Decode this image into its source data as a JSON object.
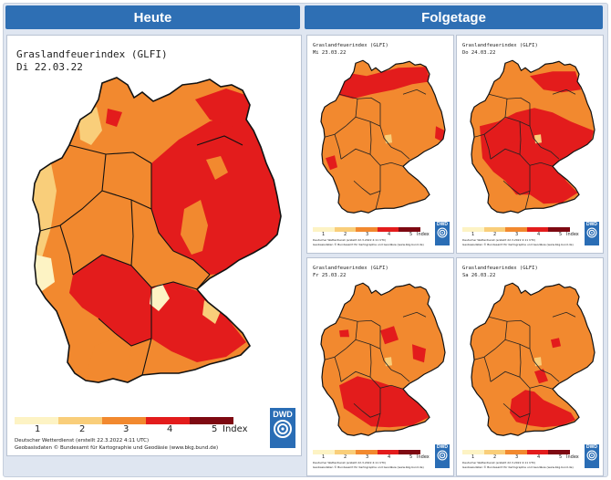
{
  "headers": {
    "today": "Heute",
    "next_days": "Folgetage"
  },
  "main_map": {
    "title": "Graslandfeuerindex (GLFI)",
    "date": "Di 22.03.22",
    "legend": {
      "numbers": [
        "1",
        "2",
        "3",
        "4",
        "5"
      ],
      "unit": "Index"
    },
    "credit_line1": "Deutscher Wetterdienst (erstellt 22.3.2022 4:11 UTC)",
    "credit_line2": "Geobasisdaten © Bundesamt für Kartographie und Geodäsie (www.bkg.bund.de)",
    "logo": "DWD"
  },
  "small_maps": [
    {
      "title": "Graslandfeuerindex (GLFI)",
      "date": "Mi 23.03.22",
      "credit_line1": "Deutscher Wetterdienst (erstellt 22.3.2022 4:11 UTC)",
      "credit_line2": "Geobasisdaten © Bundesamt für Kartographie und Geodäsie (www.bkg.bund.de)"
    },
    {
      "title": "Graslandfeuerindex (GLFI)",
      "date": "Do 24.03.22",
      "credit_line1": "Deutscher Wetterdienst (erstellt 22.3.2022 4:11 UTC)",
      "credit_line2": "Geobasisdaten © Bundesamt für Kartographie und Geodäsie (www.bkg.bund.de)"
    },
    {
      "title": "Graslandfeuerindex (GLFI)",
      "date": "Fr 25.03.22",
      "credit_line1": "Deutscher Wetterdienst (erstellt 22.3.2022 4:11 UTC)",
      "credit_line2": "Geobasisdaten © Bundesamt für Kartographie und Geodäsie (www.bkg.bund.de)"
    },
    {
      "title": "Graslandfeuerindex (GLFI)",
      "date": "Sa 26.03.22",
      "credit_line1": "Deutscher Wetterdienst (erstellt 22.3.2022 4:11 UTC)",
      "credit_line2": "Geobasisdaten © Bundesamt für Kartographie und Geodäsie (www.bkg.bund.de)"
    }
  ],
  "legend_colors": [
    "#fdf3c4",
    "#f9ce7a",
    "#f2892f",
    "#e31c1c",
    "#7e0912"
  ],
  "colors": {
    "header_blue": "#2e6fb4",
    "frame_bg": "#dfe6f1",
    "level3": "#f2892f",
    "level4": "#e31c1c",
    "level2": "#f9ce7a"
  }
}
